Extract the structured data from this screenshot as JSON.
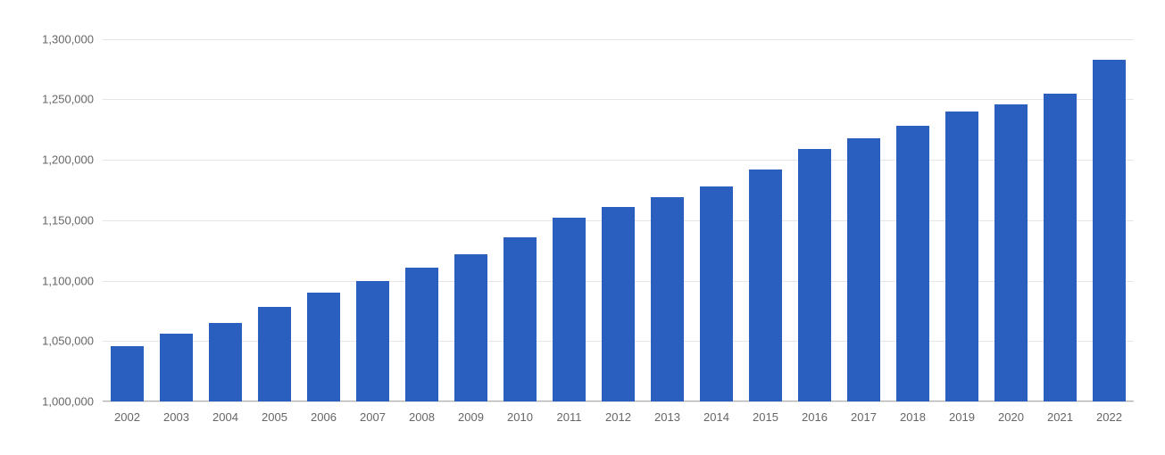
{
  "chart": {
    "type": "bar",
    "background_color": "#ffffff",
    "grid_color": "#e6e6e6",
    "baseline_color": "#b0b0b0",
    "bar_color": "#2a5ebf",
    "label_color": "#666666",
    "label_fontsize": 13,
    "bar_width_ratio": 0.68,
    "ylim": [
      1000000,
      1310000
    ],
    "yticks": [
      1000000,
      1050000,
      1100000,
      1150000,
      1200000,
      1250000,
      1300000
    ],
    "ytick_labels": [
      "1,000,000",
      "1,050,000",
      "1,100,000",
      "1,150,000",
      "1,200,000",
      "1,250,000",
      "1,300,000"
    ],
    "categories": [
      "2002",
      "2003",
      "2004",
      "2005",
      "2006",
      "2007",
      "2008",
      "2009",
      "2010",
      "2011",
      "2012",
      "2013",
      "2014",
      "2015",
      "2016",
      "2017",
      "2018",
      "2019",
      "2020",
      "2021",
      "2022"
    ],
    "values": [
      1046000,
      1056000,
      1065000,
      1078000,
      1090000,
      1100000,
      1111000,
      1122000,
      1136000,
      1152000,
      1161000,
      1169000,
      1178000,
      1192000,
      1209000,
      1218000,
      1228000,
      1240000,
      1246000,
      1255000,
      1283000
    ]
  }
}
